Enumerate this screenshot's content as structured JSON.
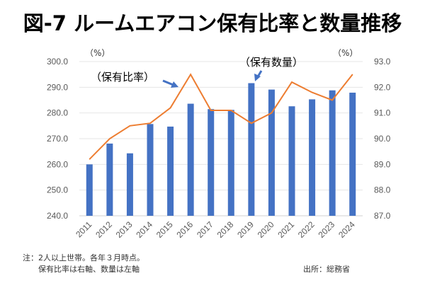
{
  "title": "図-7 ルームエアコン保有比率と数量推移",
  "chart_data": {
    "type": "bar+line",
    "title": "図-7 ルームエアコン保有比率と数量推移",
    "categories": [
      "2011",
      "2012",
      "2013",
      "2014",
      "2015",
      "2016",
      "2017",
      "2018",
      "2019",
      "2020",
      "2021",
      "2022",
      "2023",
      "2024"
    ],
    "series": [
      {
        "name": "保有数量",
        "type": "bar",
        "axis": "left",
        "color": "#4472C4",
        "values": [
          260.0,
          268.1,
          264.3,
          275.7,
          274.7,
          283.6,
          281.5,
          281.2,
          291.6,
          289.1,
          282.6,
          285.3,
          288.8,
          287.9
        ]
      },
      {
        "name": "保有比率",
        "type": "line",
        "axis": "right",
        "color": "#ED7D31",
        "values": [
          89.2,
          90.0,
          90.5,
          90.6,
          91.2,
          92.5,
          91.1,
          91.1,
          90.6,
          91.0,
          92.2,
          91.8,
          91.5,
          92.5
        ]
      }
    ],
    "left_axis": {
      "unit_label": "（%）",
      "ylim": [
        240,
        300
      ],
      "ticks": [
        "240.0",
        "250.0",
        "260.0",
        "270.0",
        "280.0",
        "290.0",
        "300.0"
      ]
    },
    "right_axis": {
      "unit_label": "（%）",
      "ylim": [
        87,
        93
      ],
      "ticks": [
        "87.0",
        "88.0",
        "89.0",
        "90.0",
        "91.0",
        "92.0",
        "93.0"
      ]
    },
    "grid": true,
    "annotations": [
      {
        "text": "（保有比率）",
        "target": "保有比率"
      },
      {
        "text": "（保有数量）",
        "target": "保有数量"
      }
    ]
  },
  "notes": {
    "line1": "注：2人以上世帯。各年３月時点。",
    "line2": "保有比率は右軸、数量は左軸",
    "source": "出所：総務省"
  }
}
